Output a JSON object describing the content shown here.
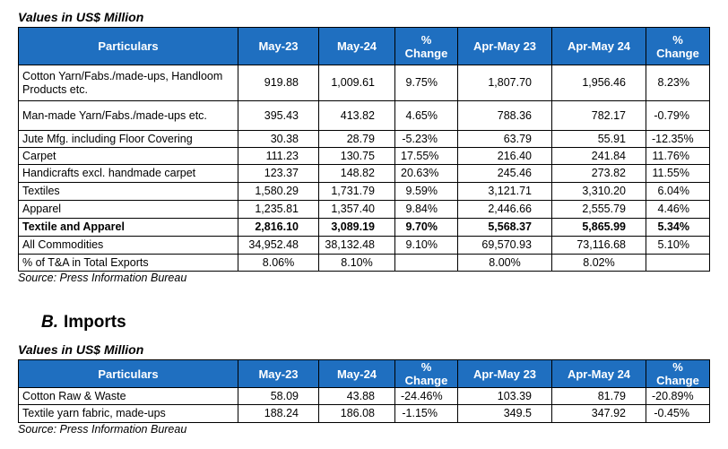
{
  "section_a": {
    "units": "Values in US$ Million",
    "table": {
      "header": [
        "Particulars",
        "May-23",
        "May-24",
        "% Change",
        "Apr-May 23",
        "Apr-May 24",
        "% Change"
      ],
      "rows": [
        [
          "Cotton Yarn/Fabs./made-ups, Handloom Products etc.",
          "919.88",
          "1,009.61",
          "9.75%",
          "1,807.70",
          "1,956.46",
          "8.23%"
        ],
        [
          "Man-made Yarn/Fabs./made-ups etc.",
          "395.43",
          "413.82",
          "4.65%",
          "788.36",
          "782.17",
          "-0.79%"
        ],
        [
          "Jute Mfg. including Floor Covering",
          "30.38",
          "28.79",
          "-5.23%",
          "63.79",
          "55.91",
          "-12.35%"
        ],
        [
          "Carpet",
          "111.23",
          "130.75",
          "17.55%",
          "216.40",
          "241.84",
          "11.76%"
        ],
        [
          "Handicrafts excl. handmade carpet",
          "123.37",
          "148.82",
          "20.63%",
          "245.46",
          "273.82",
          "11.55%"
        ],
        [
          "Textiles",
          "1,580.29",
          "1,731.79",
          "9.59%",
          "3,121.71",
          "3,310.20",
          "6.04%"
        ],
        [
          "Apparel",
          "1,235.81",
          "1,357.40",
          "9.84%",
          "2,446.66",
          "2,555.79",
          "4.46%"
        ],
        [
          "Textile and Apparel",
          "2,816.10",
          "3,089.19",
          "9.70%",
          "5,568.37",
          "5,865.99",
          "5.34%"
        ],
        [
          "All Commodities",
          "34,952.48",
          "38,132.48",
          "9.10%",
          "69,570.93",
          "73,116.68",
          "5.10%"
        ],
        [
          "% of T&A in Total Exports",
          "8.06%",
          "8.10%",
          null,
          "8.00%",
          "8.02%",
          null
        ]
      ]
    },
    "source": "Source: Press Information Bureau"
  },
  "section_b": {
    "heading_letter": "B.",
    "heading": "Imports",
    "units": "Values in US$ Million",
    "table": {
      "header": [
        "Particulars",
        "May-23",
        "May-24",
        "% Change",
        "Apr-May 23",
        "Apr-May 24",
        "% Change"
      ],
      "rows": [
        [
          "Cotton Raw & Waste",
          "58.09",
          "43.88",
          "-24.46%",
          "103.39",
          "81.79",
          "-20.89%"
        ],
        [
          "Textile yarn fabric, made-ups",
          "188.24",
          "186.08",
          "-1.15%",
          "349.5",
          "347.92",
          "-0.45%"
        ]
      ]
    },
    "source": "Source: Press Information Bureau"
  }
}
